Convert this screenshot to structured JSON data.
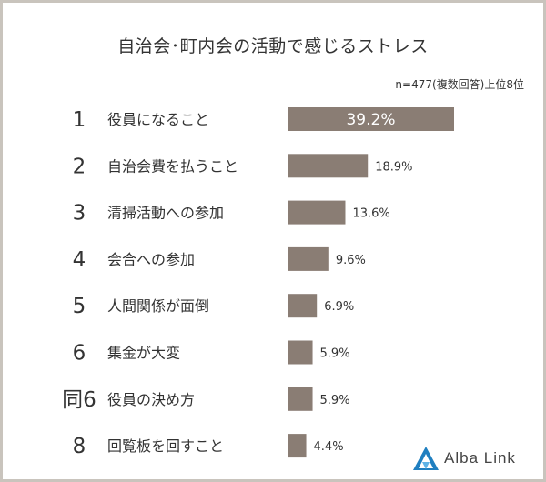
{
  "chart_data": {
    "type": "bar",
    "orientation": "horizontal",
    "title": "自治会･町内会の活動で感じるストレス",
    "subtitle": "n=477(複数回答)上位8位",
    "ranks": [
      "1",
      "2",
      "3",
      "4",
      "5",
      "6",
      "同6",
      "8"
    ],
    "categories": [
      "役員になること",
      "自治会費を払うこと",
      "清掃活動への参加",
      "会合への参加",
      "人間関係が面倒",
      "集金が大変",
      "役員の決め方",
      "回覧板を回すこと"
    ],
    "values": [
      39.2,
      18.9,
      13.6,
      9.6,
      6.9,
      5.9,
      5.9,
      4.4
    ],
    "value_labels": [
      "39.2%",
      "18.9%",
      "13.6%",
      "9.6%",
      "6.9%",
      "5.9%",
      "5.9%",
      "4.4%"
    ],
    "xlim": [
      0,
      39.2
    ],
    "grid": false,
    "legend": "none"
  },
  "colors": {
    "bar": "#8a7d74",
    "text": "#333333",
    "frame": "#c9c4bd",
    "inside_label": "#ffffff",
    "logo": "#1f7fc0"
  },
  "brand": {
    "name": "Alba Link",
    "icon": "alba-link-logo-icon"
  }
}
